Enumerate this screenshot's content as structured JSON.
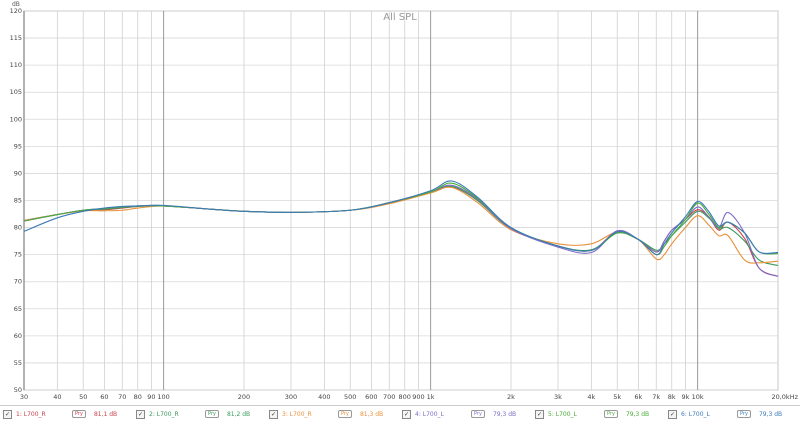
{
  "chart_data": {
    "type": "line",
    "title": "All SPL",
    "ylabel": "dB",
    "xlabel": "",
    "xscale": "log",
    "xlim": [
      30,
      20000
    ],
    "ylim": [
      50,
      120
    ],
    "grid": true,
    "y_ticks": [
      "50",
      "55",
      "60",
      "65",
      "70",
      "75",
      "80",
      "85",
      "90",
      "95",
      "100",
      "105",
      "110",
      "115",
      "120"
    ],
    "x_ticks": [
      {
        "v": 30,
        "l": "30"
      },
      {
        "v": 40,
        "l": "40"
      },
      {
        "v": 50,
        "l": "50"
      },
      {
        "v": 60,
        "l": "60"
      },
      {
        "v": 70,
        "l": "70"
      },
      {
        "v": 80,
        "l": "80"
      },
      {
        "v": 90,
        "l": "90"
      },
      {
        "v": 100,
        "l": "100"
      },
      {
        "v": 200,
        "l": "200"
      },
      {
        "v": 300,
        "l": "300"
      },
      {
        "v": 400,
        "l": "400"
      },
      {
        "v": 500,
        "l": "500"
      },
      {
        "v": 600,
        "l": "600"
      },
      {
        "v": 700,
        "l": "700"
      },
      {
        "v": 800,
        "l": "800"
      },
      {
        "v": 900,
        "l": "900"
      },
      {
        "v": 1000,
        "l": "1k"
      },
      {
        "v": 2000,
        "l": "2k"
      },
      {
        "v": 3000,
        "l": "3k"
      },
      {
        "v": 4000,
        "l": "4k"
      },
      {
        "v": 5000,
        "l": "5k"
      },
      {
        "v": 6000,
        "l": "6k"
      },
      {
        "v": 7000,
        "l": "7k"
      },
      {
        "v": 8000,
        "l": "8k"
      },
      {
        "v": 9000,
        "l": "9k"
      },
      {
        "v": 10000,
        "l": "10k"
      },
      {
        "v": 20000,
        "l": "20,0kHz"
      }
    ],
    "x": [
      30,
      40,
      50,
      60,
      70,
      80,
      100,
      150,
      200,
      300,
      500,
      700,
      1000,
      1200,
      1500,
      2000,
      3000,
      4000,
      5000,
      6000,
      7000,
      7500,
      8000,
      9000,
      10000,
      11000,
      12000,
      13000,
      15000,
      17000,
      20000
    ],
    "series": [
      {
        "name": "1: L700_R",
        "color": "#c8424b",
        "values": [
          81.3,
          82.4,
          83.2,
          83.3,
          83.6,
          83.9,
          84.0,
          83.4,
          83.0,
          82.8,
          83.2,
          84.6,
          86.6,
          87.5,
          85.0,
          79.8,
          76.6,
          75.8,
          79.3,
          77.8,
          75.5,
          77.5,
          79.5,
          81.5,
          83.3,
          82.0,
          79.5,
          81.0,
          78.0,
          72.5,
          71.0
        ]
      },
      {
        "name": "2: L700_R",
        "color": "#3a9a5a",
        "values": [
          81.3,
          82.4,
          83.2,
          83.4,
          83.7,
          83.9,
          84.0,
          83.4,
          83.0,
          82.8,
          83.2,
          84.6,
          86.6,
          87.6,
          85.0,
          79.8,
          76.6,
          75.9,
          79.0,
          77.8,
          75.8,
          77.0,
          78.5,
          81.0,
          83.0,
          81.8,
          79.8,
          80.0,
          77.5,
          74.0,
          73.0
        ]
      },
      {
        "name": "3: L700_R",
        "color": "#e8913a",
        "values": [
          81.3,
          82.4,
          83.1,
          83.1,
          83.2,
          83.6,
          84.0,
          83.4,
          83.0,
          82.8,
          83.2,
          84.4,
          86.4,
          87.4,
          84.6,
          79.6,
          77.0,
          77.0,
          79.2,
          77.8,
          74.2,
          75.0,
          77.0,
          80.0,
          82.2,
          80.5,
          78.5,
          78.5,
          74.0,
          73.5,
          73.8
        ]
      },
      {
        "name": "4: L700_L",
        "color": "#7c6cc8",
        "values": [
          81.2,
          82.4,
          83.2,
          83.5,
          83.8,
          84.0,
          84.0,
          83.4,
          83.0,
          82.8,
          83.2,
          84.6,
          86.6,
          87.8,
          85.2,
          79.8,
          76.4,
          75.4,
          79.4,
          77.8,
          75.5,
          77.5,
          79.5,
          81.5,
          83.8,
          82.0,
          80.0,
          82.8,
          79.0,
          72.5,
          71.0
        ]
      },
      {
        "name": "5: L700_L",
        "color": "#4aab3a",
        "values": [
          81.2,
          82.4,
          83.2,
          83.5,
          83.8,
          84.0,
          84.0,
          83.4,
          83.0,
          82.8,
          83.2,
          84.6,
          86.6,
          88.2,
          85.4,
          80.0,
          76.6,
          75.8,
          79.0,
          77.8,
          75.0,
          76.5,
          78.5,
          81.5,
          84.5,
          82.5,
          80.0,
          81.0,
          79.0,
          75.5,
          75.2
        ]
      },
      {
        "name": "6: L700_L",
        "color": "#3a7ab8",
        "values": [
          79.3,
          81.8,
          83.0,
          83.6,
          83.9,
          84.0,
          84.1,
          83.4,
          83.0,
          82.8,
          83.2,
          84.6,
          86.8,
          88.6,
          85.6,
          80.0,
          76.6,
          75.8,
          79.2,
          77.8,
          75.0,
          77.0,
          79.0,
          82.0,
          84.8,
          83.0,
          80.3,
          81.0,
          79.0,
          75.5,
          75.4
        ]
      }
    ]
  },
  "legend": [
    {
      "label": "1: L700_R",
      "button": "Pry",
      "value": "81,1 dB",
      "color": "#c8424b"
    },
    {
      "label": "2: L700_R",
      "button": "Pry",
      "value": "81,2 dB",
      "color": "#3a9a5a"
    },
    {
      "label": "3: L700_R",
      "button": "Pry",
      "value": "81,3 dB",
      "color": "#e8913a"
    },
    {
      "label": "4: L700_L",
      "button": "Pry",
      "value": "79,3 dB",
      "color": "#7c6cc8"
    },
    {
      "label": "5: L700_L",
      "button": "Pry",
      "value": "79,3 dB",
      "color": "#4aab3a"
    },
    {
      "label": "6: L700_L",
      "button": "Pry",
      "value": "79,3 dB",
      "color": "#3a7ab8"
    }
  ]
}
